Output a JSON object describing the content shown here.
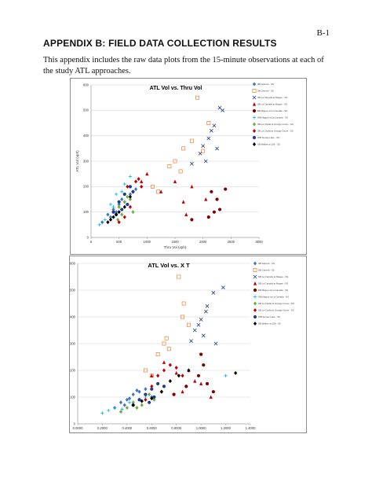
{
  "page": {
    "page_number": "B-1",
    "heading": "APPENDIX B: FIELD DATA COLLECTION RESULTS",
    "intro": "This appendix includes the raw data plots from the 15-minute observations at each of the study ATL approaches."
  },
  "chart_data": [
    {
      "type": "scatter",
      "title": "ATL Vol vs. Thru Vol",
      "xlabel": "Thru Vol (vph)",
      "ylabel": "ATL Vol (vph)",
      "xlim": [
        0,
        3000
      ],
      "ylim": [
        0,
        600
      ],
      "xticks": [
        "0",
        "500",
        "1000",
        "1500",
        "2000",
        "2500",
        "3000"
      ],
      "yticks": [
        "0",
        "100",
        "200",
        "300",
        "400",
        "500",
        "600"
      ],
      "grid": true,
      "legend_position": "right",
      "series": [
        {
          "name": "NB Garnett - SS",
          "color": "#4472c4",
          "marker": "diamond",
          "points": [
            [
              200,
              60
            ],
            [
              300,
              90
            ],
            [
              400,
              110
            ],
            [
              500,
              130
            ],
            [
              550,
              150
            ],
            [
              700,
              170
            ],
            [
              800,
              190
            ],
            [
              600,
              140
            ],
            [
              450,
              100
            ],
            [
              350,
              80
            ]
          ]
        },
        {
          "name": "SB Garnett - SS",
          "color": "#ed7d31",
          "marker": "square-open",
          "points": [
            [
              1900,
              550
            ],
            [
              2100,
              450
            ],
            [
              1800,
              380
            ],
            [
              2000,
              340
            ],
            [
              1500,
              300
            ],
            [
              1400,
              280
            ],
            [
              1600,
              260
            ],
            [
              1100,
              200
            ],
            [
              1200,
              180
            ],
            [
              1650,
              350
            ]
          ]
        },
        {
          "name": "NB La Canada at Magee - SS",
          "color": "#1f3c88",
          "marker": "x",
          "points": [
            [
              2300,
              510
            ],
            [
              2350,
              500
            ],
            [
              2200,
              440
            ],
            [
              2150,
              420
            ],
            [
              2100,
              390
            ],
            [
              2000,
              360
            ],
            [
              1950,
              330
            ],
            [
              2050,
              300
            ],
            [
              1800,
              290
            ],
            [
              2250,
              350
            ]
          ]
        },
        {
          "name": "SB La Canada at Magee - SS",
          "color": "#c00000",
          "marker": "triangle",
          "points": [
            [
              1800,
              200
            ],
            [
              1500,
              220
            ],
            [
              1250,
              180
            ],
            [
              2050,
              150
            ],
            [
              1650,
              140
            ],
            [
              1700,
              90
            ],
            [
              900,
              220
            ],
            [
              1000,
              250
            ]
          ]
        },
        {
          "name": "EB Magee at La Canada - SS",
          "color": "#7f0000",
          "marker": "circle",
          "points": [
            [
              2150,
              180
            ],
            [
              2250,
              150
            ],
            [
              2300,
              110
            ],
            [
              2200,
              100
            ],
            [
              2100,
              80
            ],
            [
              1800,
              70
            ],
            [
              2400,
              190
            ]
          ]
        },
        {
          "name": "WB Magee at La Canada - SS",
          "color": "#00b0f0",
          "marker": "plus",
          "points": [
            [
              150,
              50
            ],
            [
              250,
              70
            ],
            [
              350,
              130
            ],
            [
              450,
              170
            ],
            [
              600,
              210
            ],
            [
              700,
              240
            ],
            [
              550,
              180
            ],
            [
              400,
              120
            ]
          ]
        },
        {
          "name": "NB La Cholla at Orange Grove - SS",
          "color": "#70ad47",
          "marker": "diamond",
          "points": [
            [
              500,
              120
            ],
            [
              600,
              140
            ],
            [
              650,
              160
            ],
            [
              700,
              150
            ],
            [
              750,
              100
            ],
            [
              550,
              90
            ],
            [
              480,
              70
            ]
          ]
        },
        {
          "name": "SB La Cholla at Orange Grove - SS",
          "color": "#c00000",
          "marker": "diamond",
          "points": [
            [
              600,
              80
            ],
            [
              700,
              120
            ],
            [
              750,
              180
            ],
            [
              800,
              220
            ],
            [
              850,
              230
            ],
            [
              900,
              200
            ],
            [
              650,
              200
            ],
            [
              500,
              60
            ]
          ]
        },
        {
          "name": "WB Sunset Lake - SS",
          "color": "#1f3c88",
          "marker": "circle",
          "points": [
            [
              400,
              100
            ],
            [
              500,
              140
            ],
            [
              600,
              170
            ],
            [
              700,
              200
            ],
            [
              750,
              180
            ],
            [
              650,
              130
            ],
            [
              550,
              110
            ],
            [
              450,
              90
            ]
          ]
        },
        {
          "name": "SB Walker at 106 - SS",
          "color": "#000000",
          "marker": "diamond",
          "points": [
            [
              300,
              60
            ],
            [
              400,
              80
            ],
            [
              500,
              100
            ],
            [
              600,
              120
            ],
            [
              700,
              160
            ],
            [
              350,
              70
            ],
            [
              450,
              90
            ]
          ]
        }
      ]
    },
    {
      "type": "scatter",
      "title": "ATL Vol vs. X T",
      "xlabel": "",
      "ylabel": "",
      "xlim": [
        0,
        1.4
      ],
      "ylim": [
        0,
        600
      ],
      "xticks": [
        "0.0000",
        "0.2000",
        "0.4000",
        "0.6000",
        "0.8000",
        "1.0000",
        "1.2000",
        "1.4000"
      ],
      "yticks": [
        "0",
        "100",
        "200",
        "300",
        "400",
        "500",
        "600"
      ],
      "grid": true,
      "legend_position": "right",
      "series": [
        {
          "name": "NB Garnett - SS",
          "color": "#4472c4",
          "marker": "diamond",
          "points": [
            [
              0.3,
              60
            ],
            [
              0.35,
              80
            ],
            [
              0.4,
              90
            ],
            [
              0.45,
              110
            ],
            [
              0.5,
              120
            ],
            [
              0.55,
              130
            ],
            [
              0.6,
              100
            ],
            [
              0.38,
              70
            ],
            [
              0.42,
              95
            ],
            [
              0.48,
              125
            ]
          ]
        },
        {
          "name": "SB Garnett - SS",
          "color": "#ed7d31",
          "marker": "square-open",
          "points": [
            [
              0.82,
              550
            ],
            [
              0.86,
              450
            ],
            [
              0.85,
              400
            ],
            [
              0.72,
              320
            ],
            [
              0.7,
              300
            ],
            [
              0.74,
              280
            ],
            [
              0.65,
              260
            ],
            [
              0.9,
              370
            ],
            [
              0.55,
              200
            ],
            [
              0.6,
              180
            ]
          ]
        },
        {
          "name": "NB La Canada at Magee - SS",
          "color": "#1f3c88",
          "marker": "x",
          "points": [
            [
              1.18,
              510
            ],
            [
              1.1,
              490
            ],
            [
              1.05,
              440
            ],
            [
              1.04,
              420
            ],
            [
              1.0,
              390
            ],
            [
              0.98,
              370
            ],
            [
              0.95,
              350
            ],
            [
              1.02,
              330
            ],
            [
              0.92,
              310
            ],
            [
              1.12,
              300
            ]
          ]
        },
        {
          "name": "SB La Canada at Magee - SS",
          "color": "#c00000",
          "marker": "triangle",
          "points": [
            [
              0.9,
              200
            ],
            [
              0.8,
              190
            ],
            [
              0.6,
              180
            ],
            [
              0.95,
              160
            ],
            [
              1.0,
              150
            ],
            [
              0.85,
              120
            ],
            [
              1.08,
              100
            ],
            [
              0.7,
              230
            ]
          ]
        },
        {
          "name": "EB Magee at La Canada - SS",
          "color": "#7f0000",
          "marker": "circle",
          "points": [
            [
              1.0,
              260
            ],
            [
              1.02,
              220
            ],
            [
              0.98,
              180
            ],
            [
              1.05,
              150
            ],
            [
              0.88,
              140
            ],
            [
              0.78,
              110
            ],
            [
              1.1,
              120
            ]
          ]
        },
        {
          "name": "WB Magee at La Canada - SS",
          "color": "#00b0f0",
          "marker": "plus",
          "points": [
            [
              0.2,
              40
            ],
            [
              0.25,
              50
            ],
            [
              0.3,
              60
            ],
            [
              0.42,
              80
            ],
            [
              0.5,
              90
            ],
            [
              0.55,
              100
            ],
            [
              0.36,
              55
            ],
            [
              1.2,
              180
            ]
          ]
        },
        {
          "name": "NB La Cholla at Orange Grove - SS",
          "color": "#70ad47",
          "marker": "diamond",
          "points": [
            [
              0.4,
              60
            ],
            [
              0.45,
              80
            ],
            [
              0.52,
              70
            ],
            [
              0.58,
              110
            ],
            [
              0.62,
              90
            ],
            [
              0.48,
              60
            ],
            [
              0.35,
              45
            ]
          ]
        },
        {
          "name": "SB La Cholla at Orange Grove - SS",
          "color": "#c00000",
          "marker": "diamond",
          "points": [
            [
              0.6,
              140
            ],
            [
              0.65,
              180
            ],
            [
              0.7,
              200
            ],
            [
              0.75,
              220
            ],
            [
              0.8,
              210
            ],
            [
              0.85,
              180
            ],
            [
              0.68,
              120
            ],
            [
              0.55,
              90
            ]
          ]
        },
        {
          "name": "WB Sunset Lake - SS",
          "color": "#1f3c88",
          "marker": "circle",
          "points": [
            [
              0.5,
              90
            ],
            [
              0.55,
              110
            ],
            [
              0.6,
              130
            ],
            [
              0.65,
              150
            ],
            [
              0.7,
              140
            ],
            [
              0.62,
              100
            ],
            [
              0.58,
              80
            ],
            [
              0.45,
              70
            ]
          ]
        },
        {
          "name": "SB Walker at 106 - SS",
          "color": "#000000",
          "marker": "diamond",
          "points": [
            [
              0.45,
              70
            ],
            [
              0.52,
              85
            ],
            [
              0.6,
              95
            ],
            [
              0.68,
              120
            ],
            [
              0.75,
              160
            ],
            [
              0.82,
              180
            ],
            [
              0.9,
              200
            ],
            [
              1.28,
              190
            ]
          ]
        }
      ]
    }
  ]
}
